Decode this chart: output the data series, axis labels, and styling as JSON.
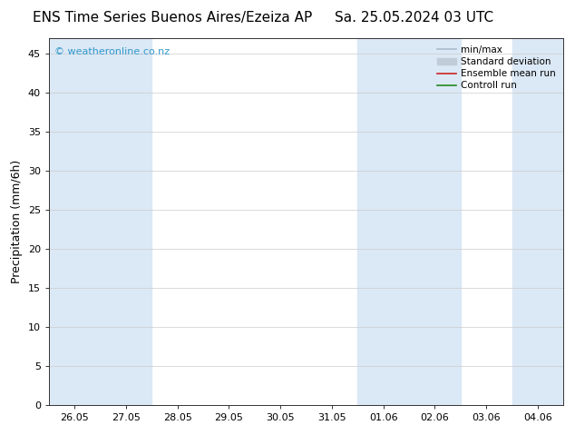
{
  "title_left": "ENS Time Series Buenos Aires/Ezeiza AP",
  "title_right": "Sa. 25.05.2024 03 UTC",
  "ylabel": "Precipitation (mm/6h)",
  "ylim": [
    0,
    47
  ],
  "yticks": [
    0,
    5,
    10,
    15,
    20,
    25,
    30,
    35,
    40,
    45
  ],
  "xtick_labels": [
    "26.05",
    "27.05",
    "28.05",
    "29.05",
    "30.05",
    "31.05",
    "01.06",
    "02.06",
    "03.06",
    "04.06"
  ],
  "n_cols": 10,
  "plot_bg_color": "#ffffff",
  "shaded_band_color": "#dbe8f5",
  "shaded_columns": [
    0,
    1,
    6,
    7,
    9
  ],
  "watermark_text": "© weatheronline.co.nz",
  "watermark_color": "#3399cc",
  "legend_items": [
    {
      "label": "min/max",
      "color": "#aabbcc",
      "lw": 1.2
    },
    {
      "label": "Standard deviation",
      "color": "#c0cdd8",
      "lw": 5
    },
    {
      "label": "Ensemble mean run",
      "color": "#cc2222",
      "lw": 1.2
    },
    {
      "label": "Controll run",
      "color": "#228822",
      "lw": 1.2
    }
  ],
  "title_fontsize": 11,
  "ylabel_fontsize": 9,
  "tick_fontsize": 8,
  "legend_fontsize": 7.5,
  "watermark_fontsize": 8,
  "fig_bg_color": "#ffffff"
}
